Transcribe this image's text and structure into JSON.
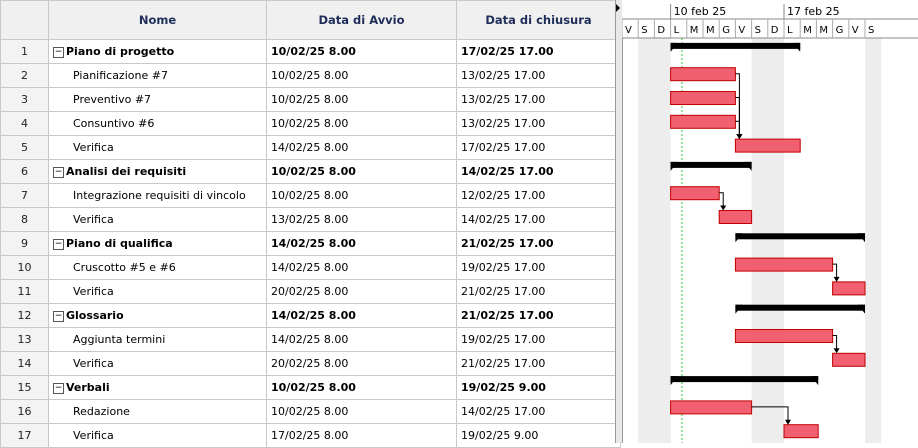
{
  "columns": {
    "name": "Nome",
    "start": "Data di Avvio",
    "end": "Data di chiusura"
  },
  "rows": [
    {
      "id": "1",
      "name": "Piano di progetto",
      "start": "10/02/25 8.00",
      "end": "17/02/25 17.00",
      "summary": true
    },
    {
      "id": "2",
      "name": "Pianificazione #7",
      "start": "10/02/25 8.00",
      "end": "13/02/25 17.00",
      "summary": false
    },
    {
      "id": "3",
      "name": "Preventivo #7",
      "start": "10/02/25 8.00",
      "end": "13/02/25 17.00",
      "summary": false
    },
    {
      "id": "4",
      "name": "Consuntivo #6",
      "start": "10/02/25 8.00",
      "end": "13/02/25 17.00",
      "summary": false
    },
    {
      "id": "5",
      "name": "Verifica",
      "start": "14/02/25 8.00",
      "end": "17/02/25 17.00",
      "summary": false
    },
    {
      "id": "6",
      "name": "Analisi dei requisiti",
      "start": "10/02/25 8.00",
      "end": "14/02/25 17.00",
      "summary": true
    },
    {
      "id": "7",
      "name": "Integrazione requisiti di vincolo",
      "start": "10/02/25 8.00",
      "end": "12/02/25 17.00",
      "summary": false
    },
    {
      "id": "8",
      "name": "Verifica",
      "start": "13/02/25 8.00",
      "end": "14/02/25 17.00",
      "summary": false
    },
    {
      "id": "9",
      "name": "Piano di qualifica",
      "start": "14/02/25 8.00",
      "end": "21/02/25 17.00",
      "summary": true
    },
    {
      "id": "10",
      "name": "Cruscotto #5 e #6",
      "start": "14/02/25 8.00",
      "end": "19/02/25 17.00",
      "summary": false
    },
    {
      "id": "11",
      "name": "Verifica",
      "start": "20/02/25 8.00",
      "end": "21/02/25 17.00",
      "summary": false
    },
    {
      "id": "12",
      "name": "Glossario",
      "start": "14/02/25 8.00",
      "end": "21/02/25 17.00",
      "summary": true
    },
    {
      "id": "13",
      "name": "Aggiunta termini",
      "start": "14/02/25 8.00",
      "end": "19/02/25 17.00",
      "summary": false
    },
    {
      "id": "14",
      "name": "Verifica",
      "start": "20/02/25 8.00",
      "end": "21/02/25 17.00",
      "summary": false
    },
    {
      "id": "15",
      "name": "Verbali",
      "start": "10/02/25 8.00",
      "end": "19/02/25 9.00",
      "summary": true
    },
    {
      "id": "16",
      "name": "Redazione",
      "start": "10/02/25 8.00",
      "end": "14/02/25 17.00",
      "summary": false
    },
    {
      "id": "17",
      "name": "Verifica",
      "start": "17/02/25 8.00",
      "end": "19/02/25 9.00",
      "summary": false
    }
  ],
  "collapse_symbol": "−",
  "timeline": {
    "weeks": [
      "10 feb 25",
      "17 feb 25"
    ],
    "day_letters": [
      "V",
      "S",
      "D",
      "L",
      "M",
      "M",
      "G",
      "V",
      "S",
      "D",
      "L",
      "M",
      "M",
      "G",
      "V",
      "S"
    ],
    "first_day": "07/02/25",
    "today_day_offset": 3.7,
    "weekend_indices": [
      1,
      2,
      8,
      9,
      15
    ],
    "colors": {
      "task_fill": "#f06070",
      "task_border": "#c00000",
      "summary": "#000000",
      "today": "#33bb33",
      "weekend": "#d8d8d8"
    }
  },
  "links": [
    {
      "from": 2,
      "to": 5
    },
    {
      "from": 3,
      "to": 5
    },
    {
      "from": 4,
      "to": 5
    },
    {
      "from": 7,
      "to": 8
    },
    {
      "from": 10,
      "to": 11
    },
    {
      "from": 13,
      "to": 14
    },
    {
      "from": 16,
      "to": 17
    }
  ]
}
